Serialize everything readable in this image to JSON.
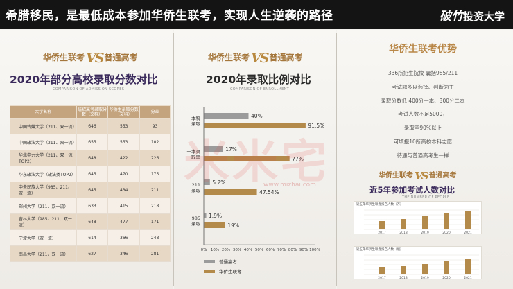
{
  "header": {
    "title": "希腊移民，是最低成本参加华侨生联考，实现人生逆袭的路径",
    "brand_part1": "破竹",
    "brand_part2": "投资大学"
  },
  "logo": {
    "left": "华侨生联考",
    "vs": "VS",
    "right": "普通高考"
  },
  "left_panel": {
    "title": "2020年部分高校录取分数对比",
    "subtitle": "COMPARISON OF ADMISSION SCORES",
    "table": {
      "headers": [
        "大学名称",
        "统招高考录取分数（文科）",
        "华侨生录取分数（文科）",
        "分差"
      ],
      "rows": [
        [
          "中国传媒大学（211、双一流）",
          "646",
          "553",
          "93"
        ],
        [
          "中国政法大学（211、双一流）",
          "655",
          "553",
          "102"
        ],
        [
          "华北电力大学（211、双一流TOP2）",
          "648",
          "422",
          "226"
        ],
        [
          "华东政法大学（政法类TOP2）",
          "645",
          "470",
          "175"
        ],
        [
          "中央民族大学（985、211、双一流）",
          "645",
          "434",
          "211"
        ],
        [
          "郑州大学（211、双一流）",
          "633",
          "415",
          "218"
        ],
        [
          "吉林大学（985、211、双一流）",
          "648",
          "477",
          "171"
        ],
        [
          "宁波大学（双一流）",
          "614",
          "366",
          "248"
        ],
        [
          "南昌大学（211、双一流）",
          "627",
          "346",
          "281"
        ]
      ]
    }
  },
  "middle_panel": {
    "title": "2020年录取比例对比",
    "subtitle": "COMPARISON OF ENROLLMENT"
  },
  "chart_data": {
    "type": "bar",
    "orientation": "horizontal",
    "categories": [
      "本科录取",
      "一本录取率",
      "211录取",
      "985录取"
    ],
    "series": [
      {
        "name": "普通高考",
        "values": [
          40,
          17,
          5.2,
          1.9
        ],
        "color": "#9b9b9b"
      },
      {
        "name": "华侨生联考",
        "values": [
          91.5,
          77,
          47.54,
          19
        ],
        "color": "#b38a4a"
      }
    ],
    "value_labels": [
      [
        "40%",
        "91.5%"
      ],
      [
        "17%",
        "77%"
      ],
      [
        "5.2%",
        "47.54%"
      ],
      [
        "1.9%",
        "19%"
      ]
    ],
    "x_ticks": [
      "0%",
      "10%",
      "20%",
      "30%",
      "40%",
      "50%",
      "60%",
      "70%",
      "80%",
      "90%",
      "100%"
    ],
    "xlim": [
      0,
      100
    ],
    "legend_position": "bottom-left"
  },
  "right_panel": {
    "title": "华侨生联考优势",
    "items": [
      "336所招生院校 囊括985/211",
      "考试题多以选择、判断为主",
      "录取分数低 400分一本、300分二本",
      "考试人数不足5000，",
      "录取率90%以上",
      "可填报10所高校本科志愿",
      "待遇与普通高考生一样"
    ],
    "sub_title": "近5年参加考试人数对比",
    "sub_subtitle": "THE NUMBER OF PEOPLE",
    "mini_chart_1": {
      "label": "近五年华侨生联考报名人数（万）",
      "years": [
        "2017",
        "2018",
        "2019",
        "2020",
        "2021"
      ],
      "values": [
        0.6,
        0.75,
        0.95,
        1.2,
        1.3
      ]
    },
    "mini_chart_2": {
      "label": "近五年华侨生联考报名人数（组）",
      "years": [
        "2017",
        "2018",
        "2019",
        "2020",
        "2021"
      ],
      "values": [
        0.55,
        0.6,
        0.75,
        0.95,
        1.1
      ]
    }
  },
  "watermark": {
    "text": "米米宅",
    "url": "www.mizhai.com"
  },
  "colors": {
    "accent_gold": "#b38a4a",
    "grey_bar": "#9b9b9b",
    "title_purple": "#3a2a5c",
    "header_bg": "#141414"
  }
}
